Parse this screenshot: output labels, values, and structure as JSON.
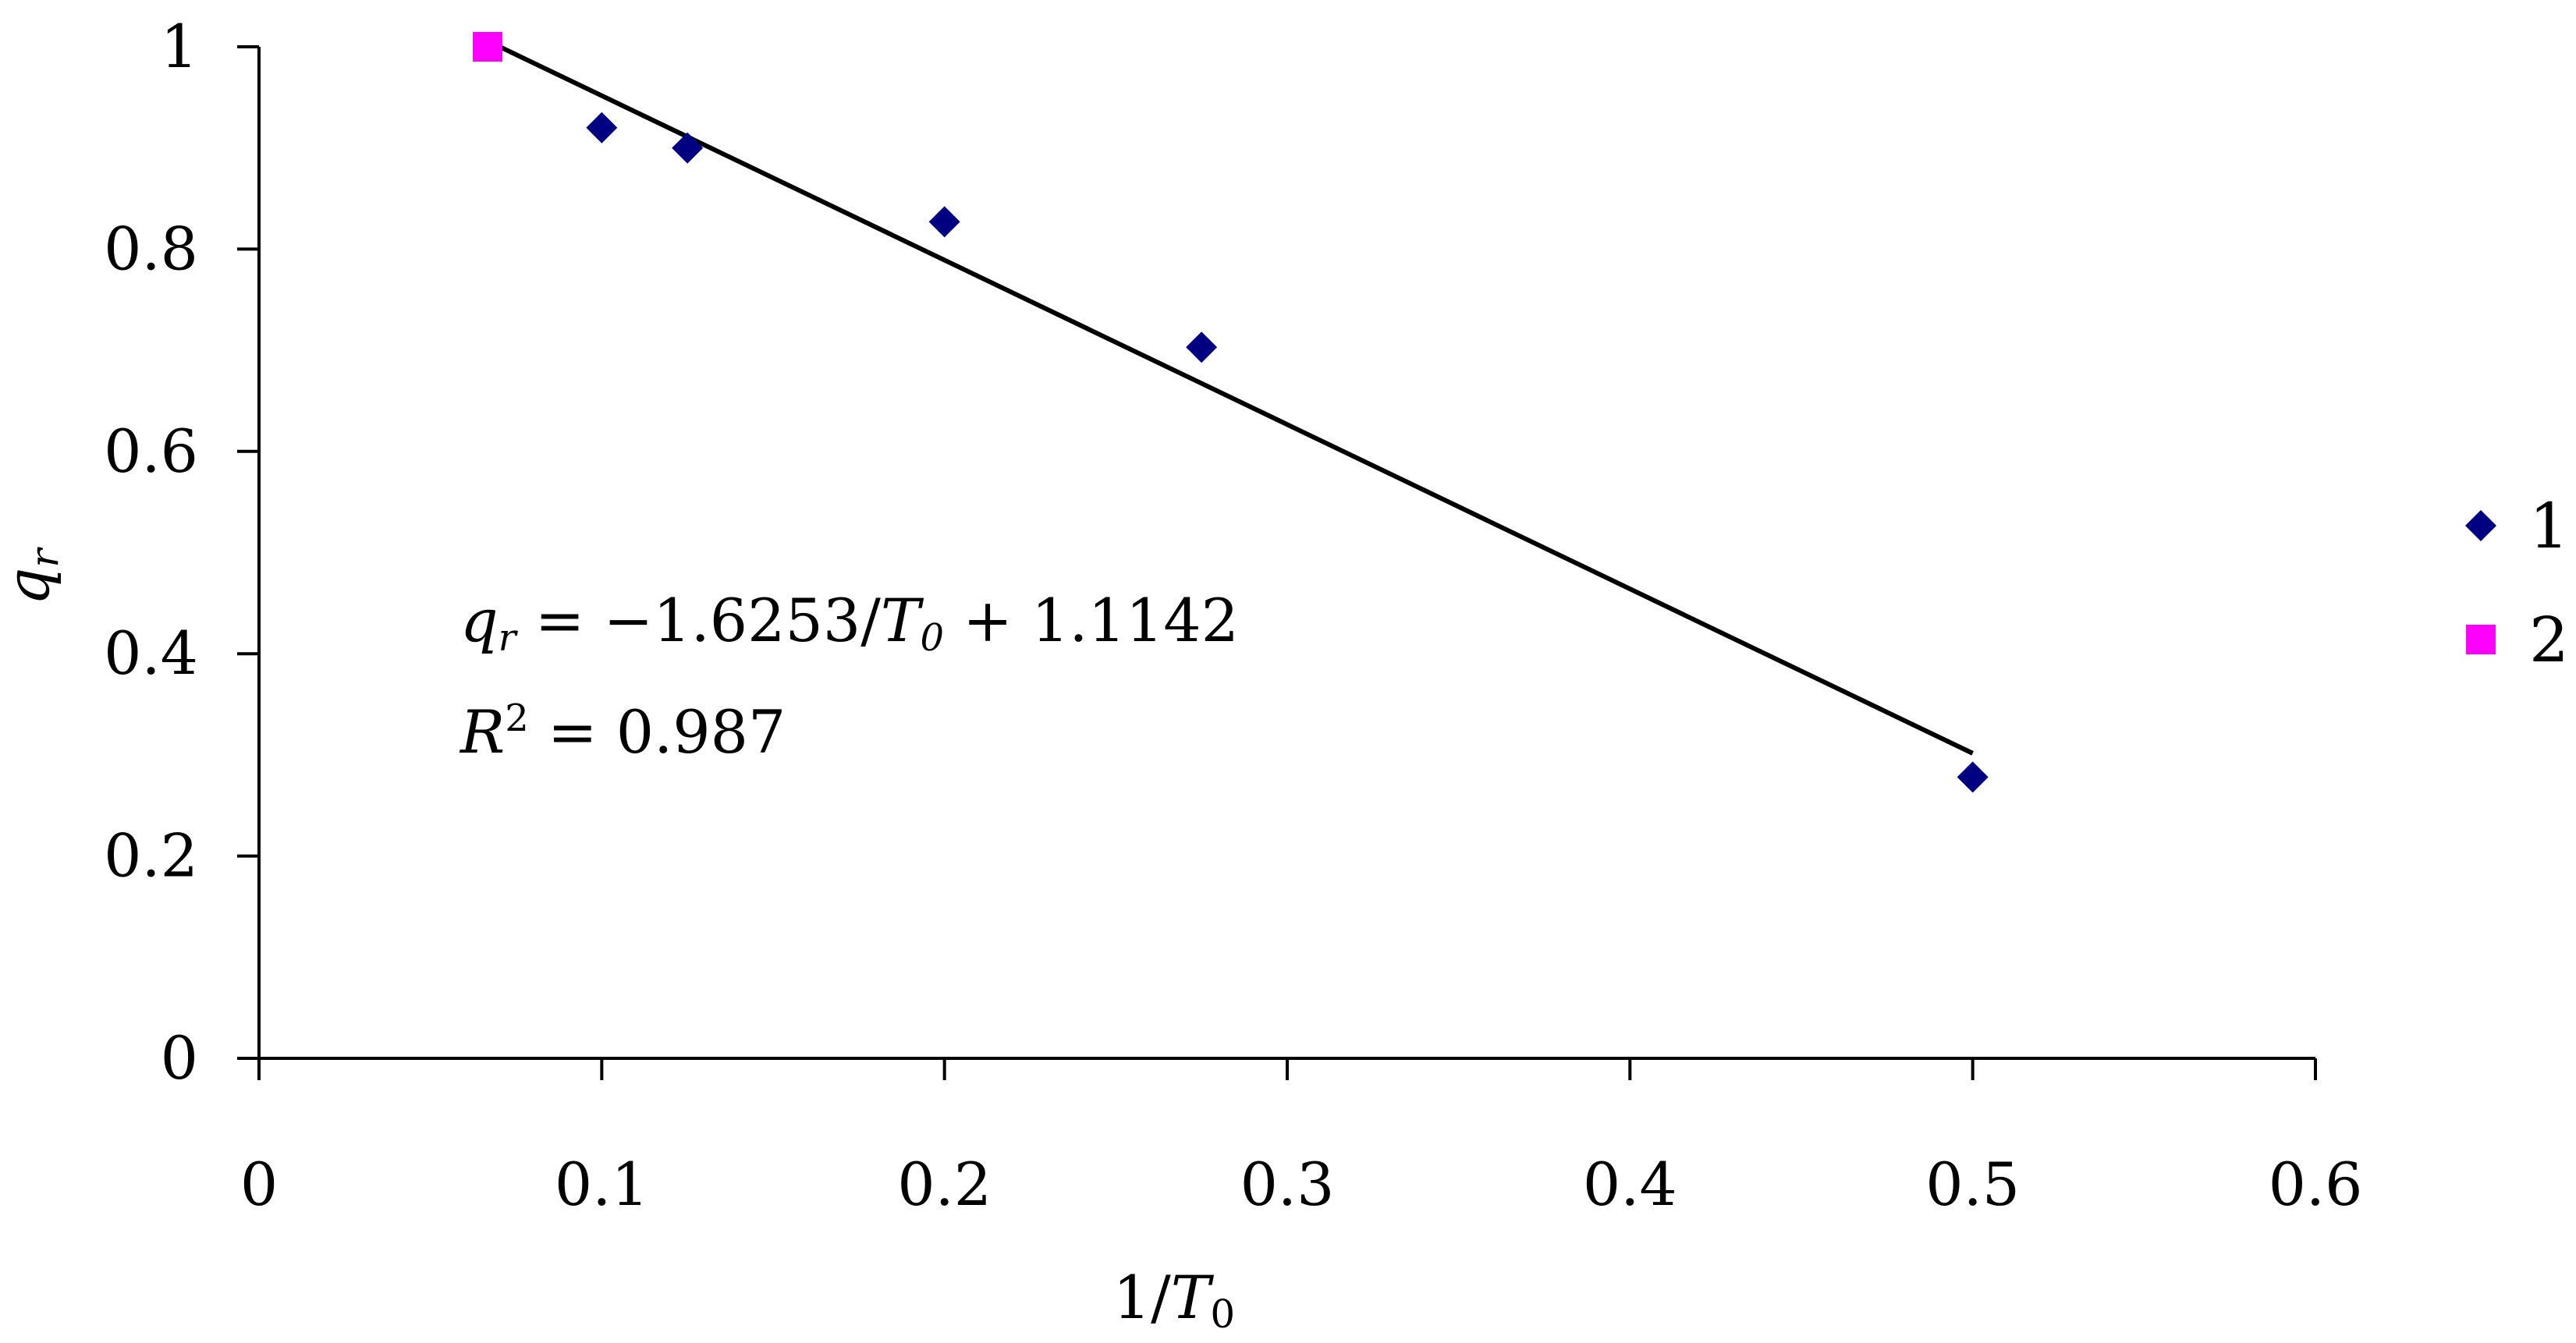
{
  "chart_data": {
    "type": "scatter",
    "x_ticks": [
      "0",
      "0.1",
      "0.2",
      "0.3",
      "0.4",
      "0.5",
      "0.6"
    ],
    "y_ticks": [
      "0",
      "0.2",
      "0.4",
      "0.6",
      "0.8",
      "1"
    ],
    "xlim": [
      0,
      0.6
    ],
    "ylim": [
      0,
      1
    ],
    "xlabel": {
      "main": "1/",
      "var": "T",
      "sub": "0"
    },
    "ylabel": {
      "var": "q",
      "sub": "r"
    },
    "grid": false,
    "legend_position": "right",
    "series": [
      {
        "name": "1",
        "marker": "diamond",
        "color": "#000080",
        "x": [
          0.1,
          0.125,
          0.2,
          0.275,
          0.5
        ],
        "y": [
          0.92,
          0.9,
          0.827,
          0.703,
          0.278
        ]
      },
      {
        "name": "2",
        "marker": "square",
        "color": "#ff00ff",
        "x": [
          0.0667
        ],
        "y": [
          1.0
        ]
      }
    ],
    "trendline": {
      "slope": -1.6253,
      "intercept": 1.1142,
      "x_range": [
        0.0667,
        0.5
      ],
      "color": "#000000"
    },
    "annotations": {
      "equation": {
        "q": "q",
        "r": "r",
        "mid": " = −1.6253/",
        "T": "T",
        "zero": "0",
        "tail": " + 1.1142"
      },
      "r2": {
        "R": "R",
        "two": "2",
        "tail": " = 0.987"
      }
    }
  }
}
